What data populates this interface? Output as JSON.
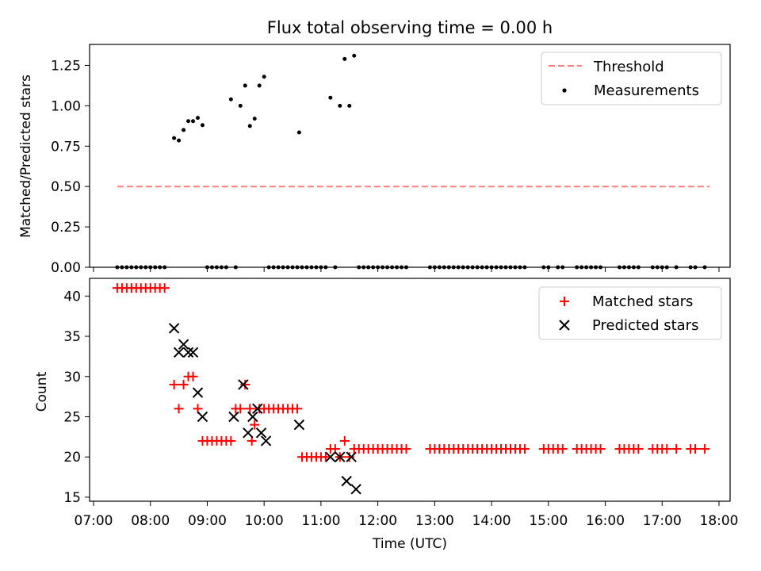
{
  "chart_data": [
    {
      "type": "scatter",
      "title": "Flux total observing time = 0.00 h",
      "xlabel": "",
      "ylabel": "Matched/Predicted stars",
      "xlim": [
        "07:00",
        "18:00"
      ],
      "ylim": [
        0,
        1.38
      ],
      "yticks": [
        "0.00",
        "0.25",
        "0.50",
        "0.75",
        "1.00",
        "1.25"
      ],
      "legend_position": "top-right",
      "series": [
        {
          "name": "Threshold",
          "kind": "dashed-line",
          "color": "#ff7f7f",
          "points": [
            [
              "07:25",
              0.5
            ],
            [
              "17:50",
              0.5
            ]
          ]
        },
        {
          "name": "Measurements",
          "kind": "dot",
          "color": "#000000",
          "points": [
            [
              "07:25",
              0
            ],
            [
              "07:30",
              0
            ],
            [
              "07:35",
              0
            ],
            [
              "07:40",
              0
            ],
            [
              "07:45",
              0
            ],
            [
              "07:50",
              0
            ],
            [
              "07:55",
              0
            ],
            [
              "08:00",
              0
            ],
            [
              "08:05",
              0
            ],
            [
              "08:10",
              0
            ],
            [
              "08:15",
              0
            ],
            [
              "08:25",
              0.8
            ],
            [
              "08:30",
              0.785
            ],
            [
              "08:35",
              0.85
            ],
            [
              "08:40",
              0.905
            ],
            [
              "08:45",
              0.905
            ],
            [
              "08:50",
              0.925
            ],
            [
              "08:55",
              0.88
            ],
            [
              "09:00",
              0
            ],
            [
              "09:05",
              0
            ],
            [
              "09:10",
              0
            ],
            [
              "09:15",
              0
            ],
            [
              "09:20",
              0
            ],
            [
              "09:30",
              0
            ],
            [
              "09:25",
              1.04
            ],
            [
              "09:35",
              1.0
            ],
            [
              "09:40",
              1.125
            ],
            [
              "09:45",
              0.875
            ],
            [
              "09:50",
              0.92
            ],
            [
              "09:55",
              1.125
            ],
            [
              "10:00",
              1.18
            ],
            [
              "10:05",
              0
            ],
            [
              "10:10",
              0
            ],
            [
              "10:15",
              0
            ],
            [
              "10:20",
              0
            ],
            [
              "10:25",
              0
            ],
            [
              "10:30",
              0
            ],
            [
              "10:35",
              0
            ],
            [
              "10:37",
              0.835
            ],
            [
              "10:40",
              0
            ],
            [
              "10:45",
              0
            ],
            [
              "10:50",
              0
            ],
            [
              "10:55",
              0
            ],
            [
              "11:00",
              0
            ],
            [
              "11:05",
              0
            ],
            [
              "11:15",
              0
            ],
            [
              "11:10",
              1.05
            ],
            [
              "11:20",
              1.0
            ],
            [
              "11:25",
              1.29
            ],
            [
              "11:30",
              1.0
            ],
            [
              "11:35",
              1.31
            ],
            [
              "11:40",
              0
            ],
            [
              "11:45",
              0
            ],
            [
              "11:50",
              0
            ],
            [
              "11:55",
              0
            ],
            [
              "12:00",
              0
            ],
            [
              "12:05",
              0
            ],
            [
              "12:10",
              0
            ],
            [
              "12:15",
              0
            ],
            [
              "12:20",
              0
            ],
            [
              "12:25",
              0
            ],
            [
              "12:30",
              0
            ],
            [
              "12:55",
              0
            ],
            [
              "13:00",
              0
            ],
            [
              "13:05",
              0
            ],
            [
              "13:10",
              0
            ],
            [
              "13:15",
              0
            ],
            [
              "13:20",
              0
            ],
            [
              "13:25",
              0
            ],
            [
              "13:30",
              0
            ],
            [
              "13:35",
              0
            ],
            [
              "13:40",
              0
            ],
            [
              "13:45",
              0
            ],
            [
              "13:50",
              0
            ],
            [
              "13:55",
              0
            ],
            [
              "14:00",
              0
            ],
            [
              "14:05",
              0
            ],
            [
              "14:10",
              0
            ],
            [
              "14:15",
              0
            ],
            [
              "14:20",
              0
            ],
            [
              "14:25",
              0
            ],
            [
              "14:30",
              0
            ],
            [
              "14:35",
              0
            ],
            [
              "14:55",
              0
            ],
            [
              "15:00",
              0
            ],
            [
              "15:10",
              0
            ],
            [
              "15:15",
              0
            ],
            [
              "15:30",
              0
            ],
            [
              "15:35",
              0
            ],
            [
              "15:40",
              0
            ],
            [
              "15:45",
              0
            ],
            [
              "15:50",
              0
            ],
            [
              "15:55",
              0
            ],
            [
              "16:15",
              0
            ],
            [
              "16:20",
              0
            ],
            [
              "16:25",
              0
            ],
            [
              "16:30",
              0
            ],
            [
              "16:35",
              0
            ],
            [
              "16:50",
              0
            ],
            [
              "16:55",
              0
            ],
            [
              "17:00",
              0
            ],
            [
              "17:05",
              0
            ],
            [
              "17:15",
              0
            ],
            [
              "17:30",
              0
            ],
            [
              "17:35",
              0
            ],
            [
              "17:45",
              0
            ]
          ]
        }
      ]
    },
    {
      "type": "scatter",
      "title": "",
      "xlabel": "Time (UTC)",
      "ylabel": "Count",
      "xlim": [
        "07:00",
        "18:00"
      ],
      "ylim": [
        14.5,
        42.2
      ],
      "xticks": [
        "07:00",
        "08:00",
        "09:00",
        "10:00",
        "11:00",
        "12:00",
        "13:00",
        "14:00",
        "15:00",
        "16:00",
        "17:00",
        "18:00"
      ],
      "yticks": [
        "15",
        "20",
        "25",
        "30",
        "35",
        "40"
      ],
      "legend_position": "top-right",
      "series": [
        {
          "name": "Matched stars",
          "kind": "plus",
          "color": "#ff0000",
          "points": [
            [
              "07:25",
              41
            ],
            [
              "07:30",
              41
            ],
            [
              "07:35",
              41
            ],
            [
              "07:40",
              41
            ],
            [
              "07:45",
              41
            ],
            [
              "07:50",
              41
            ],
            [
              "07:55",
              41
            ],
            [
              "08:00",
              41
            ],
            [
              "08:05",
              41
            ],
            [
              "08:10",
              41
            ],
            [
              "08:15",
              41
            ],
            [
              "08:25",
              29
            ],
            [
              "08:30",
              26
            ],
            [
              "08:35",
              29
            ],
            [
              "08:40",
              30
            ],
            [
              "08:45",
              30
            ],
            [
              "08:50",
              26
            ],
            [
              "08:55",
              22
            ],
            [
              "09:00",
              22
            ],
            [
              "09:05",
              22
            ],
            [
              "09:10",
              22
            ],
            [
              "09:15",
              22
            ],
            [
              "09:20",
              22
            ],
            [
              "09:25",
              22
            ],
            [
              "09:30",
              26
            ],
            [
              "09:35",
              26
            ],
            [
              "09:40",
              29
            ],
            [
              "09:45",
              26
            ],
            [
              "09:47",
              22
            ],
            [
              "09:50",
              24
            ],
            [
              "09:55",
              26
            ],
            [
              "10:00",
              26
            ],
            [
              "10:05",
              26
            ],
            [
              "10:10",
              26
            ],
            [
              "10:15",
              26
            ],
            [
              "10:20",
              26
            ],
            [
              "10:25",
              26
            ],
            [
              "10:30",
              26
            ],
            [
              "10:35",
              26
            ],
            [
              "10:40",
              20
            ],
            [
              "10:45",
              20
            ],
            [
              "10:50",
              20
            ],
            [
              "10:55",
              20
            ],
            [
              "11:00",
              20
            ],
            [
              "11:05",
              20
            ],
            [
              "11:10",
              21
            ],
            [
              "11:15",
              21
            ],
            [
              "11:20",
              20
            ],
            [
              "11:25",
              22
            ],
            [
              "11:30",
              20
            ],
            [
              "11:35",
              21
            ],
            [
              "11:40",
              21
            ],
            [
              "11:45",
              21
            ],
            [
              "11:50",
              21
            ],
            [
              "11:55",
              21
            ],
            [
              "12:00",
              21
            ],
            [
              "12:05",
              21
            ],
            [
              "12:10",
              21
            ],
            [
              "12:15",
              21
            ],
            [
              "12:20",
              21
            ],
            [
              "12:25",
              21
            ],
            [
              "12:30",
              21
            ],
            [
              "12:55",
              21
            ],
            [
              "13:00",
              21
            ],
            [
              "13:05",
              21
            ],
            [
              "13:10",
              21
            ],
            [
              "13:15",
              21
            ],
            [
              "13:20",
              21
            ],
            [
              "13:25",
              21
            ],
            [
              "13:30",
              21
            ],
            [
              "13:35",
              21
            ],
            [
              "13:40",
              21
            ],
            [
              "13:45",
              21
            ],
            [
              "13:50",
              21
            ],
            [
              "13:55",
              21
            ],
            [
              "14:00",
              21
            ],
            [
              "14:05",
              21
            ],
            [
              "14:10",
              21
            ],
            [
              "14:15",
              21
            ],
            [
              "14:20",
              21
            ],
            [
              "14:25",
              21
            ],
            [
              "14:30",
              21
            ],
            [
              "14:35",
              21
            ],
            [
              "14:55",
              21
            ],
            [
              "15:00",
              21
            ],
            [
              "15:05",
              21
            ],
            [
              "15:10",
              21
            ],
            [
              "15:15",
              21
            ],
            [
              "15:30",
              21
            ],
            [
              "15:35",
              21
            ],
            [
              "15:40",
              21
            ],
            [
              "15:45",
              21
            ],
            [
              "15:50",
              21
            ],
            [
              "15:55",
              21
            ],
            [
              "16:15",
              21
            ],
            [
              "16:20",
              21
            ],
            [
              "16:25",
              21
            ],
            [
              "16:30",
              21
            ],
            [
              "16:35",
              21
            ],
            [
              "16:50",
              21
            ],
            [
              "16:55",
              21
            ],
            [
              "17:00",
              21
            ],
            [
              "17:05",
              21
            ],
            [
              "17:15",
              21
            ],
            [
              "17:30",
              21
            ],
            [
              "17:35",
              21
            ],
            [
              "17:45",
              21
            ]
          ]
        },
        {
          "name": "Predicted stars",
          "kind": "x",
          "color": "#000000",
          "points": [
            [
              "08:25",
              36
            ],
            [
              "08:30",
              33
            ],
            [
              "08:35",
              34
            ],
            [
              "08:40",
              33
            ],
            [
              "08:45",
              33
            ],
            [
              "08:50",
              28
            ],
            [
              "08:55",
              25
            ],
            [
              "09:28",
              25
            ],
            [
              "09:38",
              29
            ],
            [
              "09:43",
              23
            ],
            [
              "09:48",
              25
            ],
            [
              "09:53",
              26
            ],
            [
              "09:57",
              23
            ],
            [
              "10:02",
              22
            ],
            [
              "10:37",
              24
            ],
            [
              "11:10",
              20
            ],
            [
              "11:20",
              20
            ],
            [
              "11:27",
              17
            ],
            [
              "11:32",
              20
            ],
            [
              "11:37",
              16
            ]
          ]
        }
      ]
    }
  ]
}
